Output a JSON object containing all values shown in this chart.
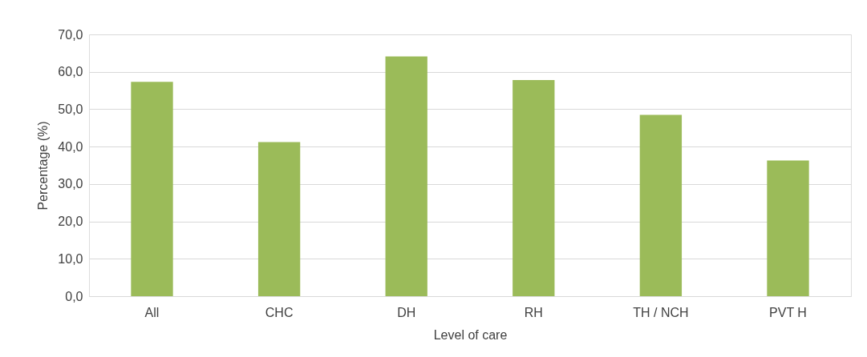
{
  "chart_data": {
    "type": "bar",
    "xlabel": "Level of care",
    "ylabel": "Percentage (%)",
    "categories": [
      "All",
      "CHC",
      "DH",
      "RH",
      "TH / NCH",
      "PVT H"
    ],
    "values": [
      57.3,
      41.2,
      64.1,
      57.8,
      48.5,
      36.3
    ],
    "color": "#9bbb59",
    "ylim": [
      0,
      70
    ],
    "yticks": [
      {
        "value": 0,
        "label": "0,0"
      },
      {
        "value": 10,
        "label": "10,0"
      },
      {
        "value": 20,
        "label": "20,0"
      },
      {
        "value": 30,
        "label": "30,0"
      },
      {
        "value": 40,
        "label": "40,0"
      },
      {
        "value": 50,
        "label": "50,0"
      },
      {
        "value": 60,
        "label": "60,0"
      },
      {
        "value": 70,
        "label": "70,0"
      }
    ],
    "grid": "y"
  }
}
